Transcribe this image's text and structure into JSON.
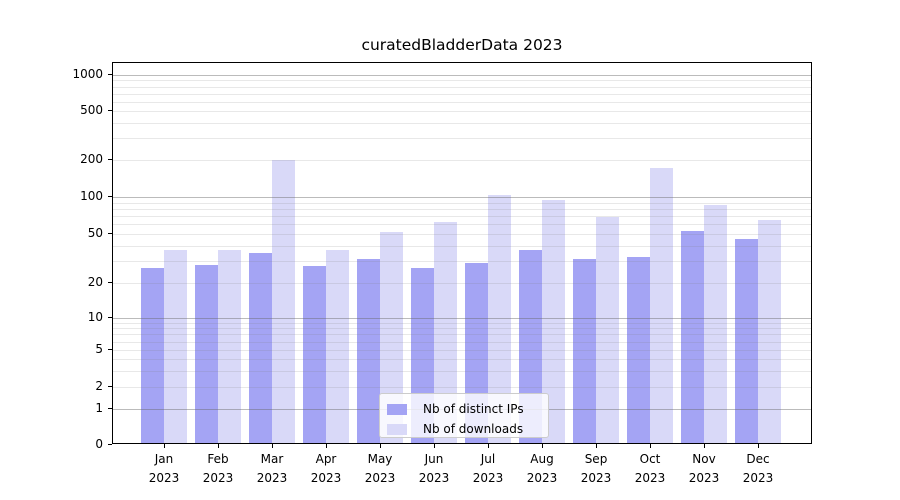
{
  "chart_data": {
    "type": "bar",
    "title": "curatedBladderData 2023",
    "xlabel": "",
    "ylabel": "",
    "yscale": "symlog",
    "ylim": [
      0,
      1300
    ],
    "grid": true,
    "categories": [
      "Jan 2023",
      "Feb 2023",
      "Mar 2023",
      "Apr 2023",
      "May 2023",
      "Jun 2023",
      "Jul 2023",
      "Aug 2023",
      "Sep 2023",
      "Oct 2023",
      "Nov 2023",
      "Dec 2023"
    ],
    "series": [
      {
        "name": "Nb of distinct IPs",
        "color": "#a4a4f4",
        "values": [
          26,
          28,
          35,
          27,
          31,
          26,
          29,
          37,
          31,
          32,
          52,
          45
        ]
      },
      {
        "name": "Nb of downloads",
        "color": "#d9d9f8",
        "values": [
          37,
          37,
          200,
          37,
          51,
          62,
          102,
          93,
          68,
          172,
          86,
          65
        ]
      }
    ],
    "yticks": [
      1000,
      500,
      200,
      100,
      50,
      20,
      10,
      5,
      2,
      1,
      0
    ],
    "major_gridline_values": [
      1,
      10,
      100,
      1000
    ],
    "minor_gridline_values": [
      2,
      3,
      4,
      5,
      6,
      7,
      8,
      9,
      20,
      30,
      40,
      50,
      60,
      70,
      80,
      90,
      200,
      300,
      400,
      500,
      600,
      700,
      800,
      900
    ],
    "legend": {
      "position": "lower center",
      "labels": [
        "Nb of distinct IPs",
        "Nb of downloads"
      ]
    }
  }
}
